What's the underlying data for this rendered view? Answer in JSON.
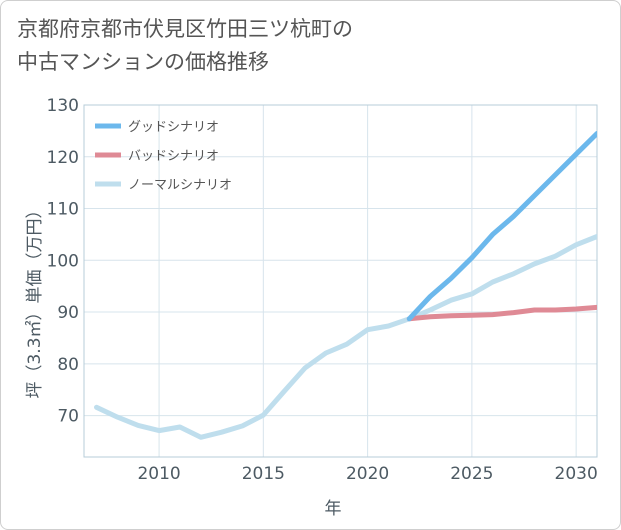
{
  "title_lines": [
    "京都府京都市伏見区竹田三ツ杭町の",
    "中古マンションの価格推移"
  ],
  "chart_data": {
    "type": "line",
    "xlabel": "年",
    "ylabel": "坪（3.3㎡）単価（万円）",
    "xlim": [
      2006.4,
      2031
    ],
    "ylim": [
      62,
      130
    ],
    "xticks": [
      2010,
      2015,
      2020,
      2025,
      2030
    ],
    "yticks": [
      70,
      80,
      90,
      100,
      110,
      120,
      130
    ],
    "grid": true,
    "legend_position": "top-left",
    "series": [
      {
        "name": "グッドシナリオ",
        "color": "#6cb8ec",
        "x": [
          2022,
          2023,
          2024,
          2025,
          2026,
          2027,
          2028,
          2029,
          2030,
          2031
        ],
        "y": [
          88.7,
          93.0,
          96.5,
          100.5,
          105.0,
          108.5,
          112.5,
          116.5,
          120.5,
          124.5
        ]
      },
      {
        "name": "バッドシナリオ",
        "color": "#df8a95",
        "x": [
          2022,
          2023,
          2024,
          2025,
          2026,
          2027,
          2028,
          2029,
          2030,
          2031
        ],
        "y": [
          88.7,
          89.1,
          89.3,
          89.4,
          89.5,
          89.9,
          90.4,
          90.4,
          90.6,
          90.9
        ]
      },
      {
        "name": "ノーマルシナリオ",
        "color": "#bfdeed",
        "x": [
          2007,
          2008,
          2009,
          2010,
          2011,
          2012,
          2013,
          2014,
          2015,
          2016,
          2017,
          2018,
          2019,
          2020,
          2021,
          2022,
          2023,
          2024,
          2025,
          2026,
          2027,
          2028,
          2029,
          2030,
          2031
        ],
        "y": [
          71.6,
          69.7,
          68.1,
          67.1,
          67.8,
          65.8,
          66.8,
          68.0,
          70.1,
          74.7,
          79.2,
          82.1,
          83.8,
          86.6,
          87.3,
          88.7,
          90.4,
          92.3,
          93.5,
          95.8,
          97.4,
          99.3,
          100.8,
          103.0,
          104.6
        ]
      }
    ]
  }
}
